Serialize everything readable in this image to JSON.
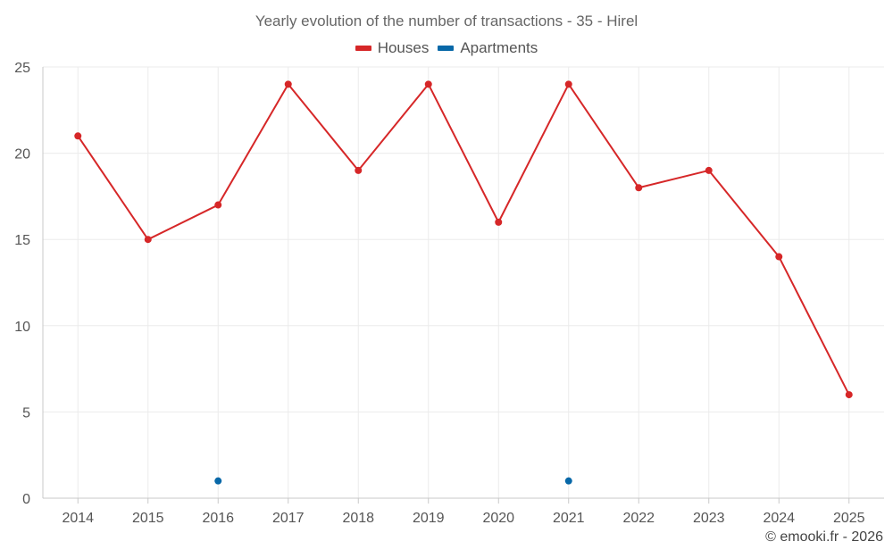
{
  "chart_data": {
    "type": "line",
    "title": "Yearly evolution of the number of transactions - 35 - Hirel",
    "xlabel": "",
    "ylabel": "",
    "categories": [
      "2014",
      "2015",
      "2016",
      "2017",
      "2018",
      "2019",
      "2020",
      "2021",
      "2022",
      "2023",
      "2024",
      "2025"
    ],
    "ylim": [
      0,
      25
    ],
    "yticks": [
      0,
      5,
      10,
      15,
      20,
      25
    ],
    "grid": true,
    "legend_position": "top-center",
    "series": [
      {
        "name": "Houses",
        "color": "#d62728",
        "values": [
          21,
          15,
          17,
          24,
          19,
          24,
          16,
          24,
          18,
          19,
          14,
          6
        ]
      },
      {
        "name": "Apartments",
        "color": "#0868a8",
        "values": [
          null,
          null,
          1,
          null,
          null,
          null,
          null,
          1,
          null,
          null,
          null,
          null
        ]
      }
    ]
  },
  "credit": "© emooki.fr - 2026"
}
